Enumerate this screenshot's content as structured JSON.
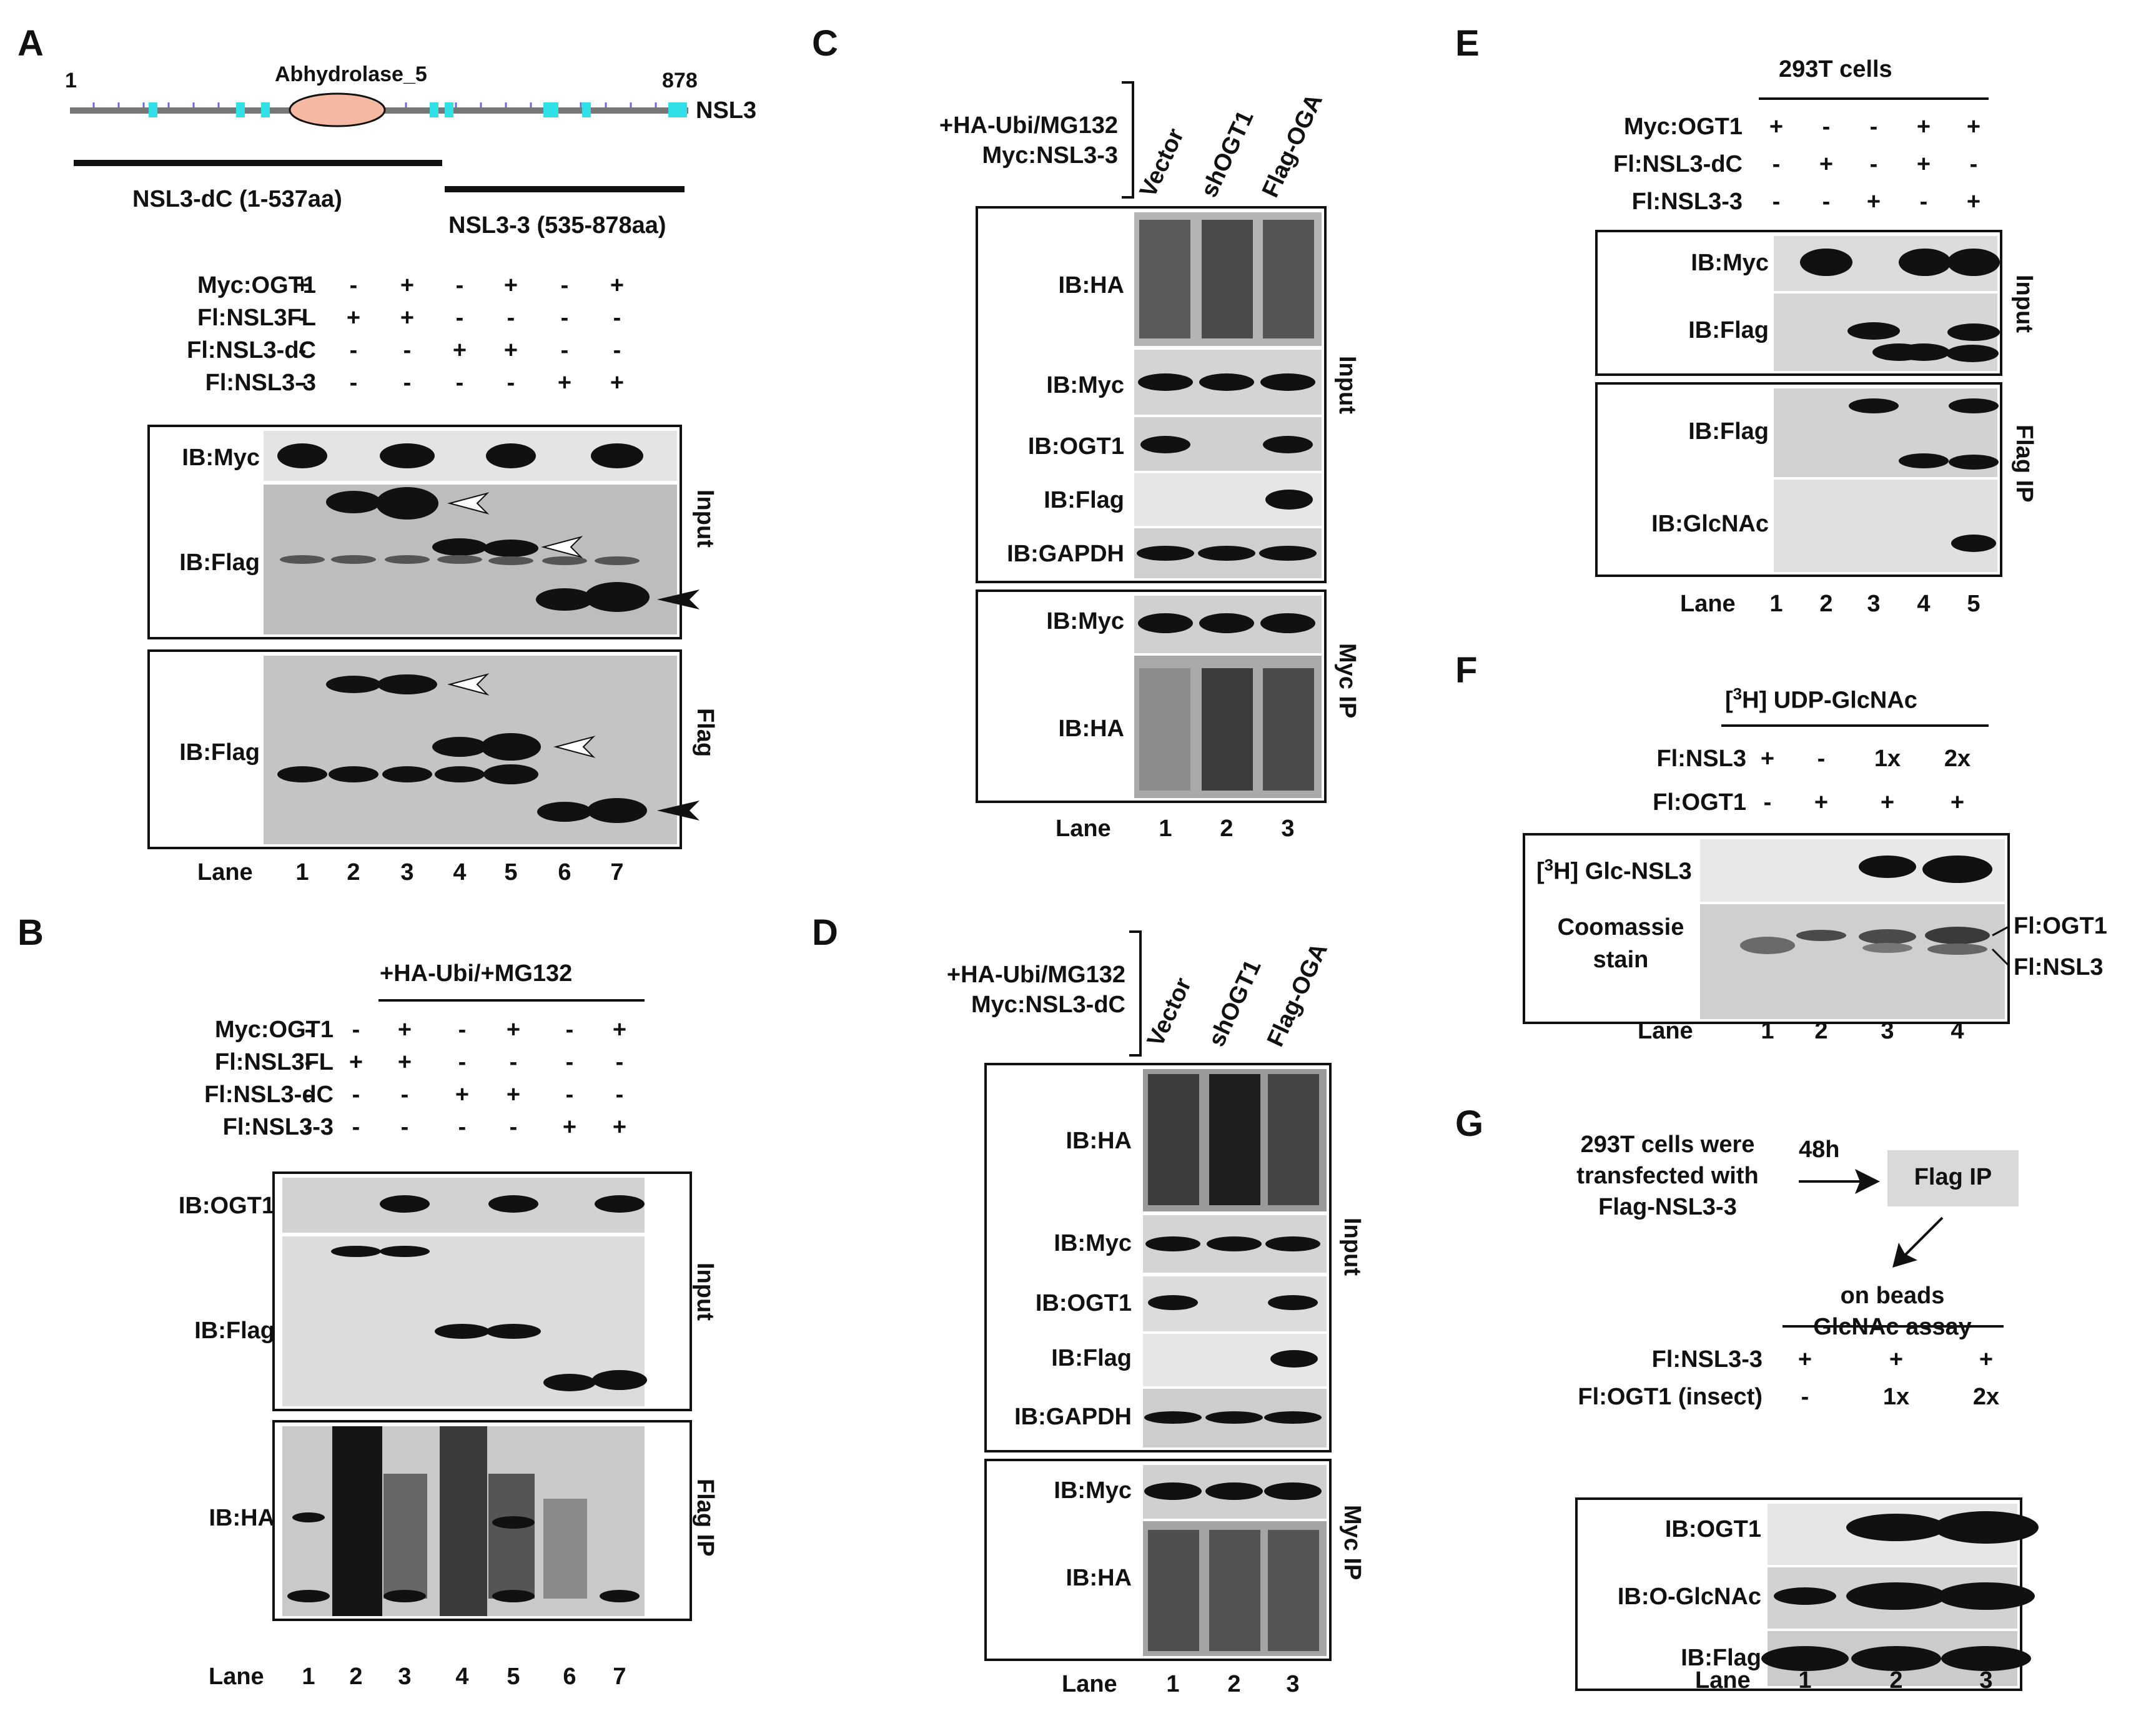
{
  "panel_labels": {
    "A": "A",
    "B": "B",
    "C": "C",
    "D": "D",
    "E": "E",
    "F": "F",
    "G": "G"
  },
  "colors": {
    "domain_fill": "#f5b8a3",
    "motif": "#2fe0e6",
    "backbone": "#777777",
    "band": "#111111",
    "membrane": "#d8d8d8",
    "frame": "#000000",
    "arrow_white": "#ffffff",
    "box_gray": "#d9d9d9"
  },
  "A": {
    "domain_start": "1",
    "domain_end": "878",
    "domain_name": "Abhydrolase_5",
    "protein": "NSL3",
    "frag1": "NSL3-dC (1-537aa)",
    "frag2": "NSL3-3 (535-878aa)",
    "rows": [
      {
        "label": "Myc:OGT1",
        "signs": [
          "+",
          "-",
          "+",
          "-",
          "+",
          "-",
          "+"
        ]
      },
      {
        "label": "Fl:NSL3FL",
        "signs": [
          "-",
          "+",
          "+",
          "-",
          "-",
          "-",
          "-"
        ]
      },
      {
        "label": "Fl:NSL3-dC",
        "signs": [
          "-",
          "-",
          "-",
          "+",
          "+",
          "-",
          "-"
        ]
      },
      {
        "label": "Fl:NSL3-3",
        "signs": [
          "-",
          "-",
          "-",
          "-",
          "-",
          "+",
          "+"
        ]
      }
    ],
    "ib_myc": "IB:Myc",
    "ib_flag_input": "IB:Flag",
    "ib_flag_ip": "IB:Flag",
    "side_input": "Input",
    "side_flag": "Flag",
    "lane_label": "Lane",
    "lanes": [
      "1",
      "2",
      "3",
      "4",
      "5",
      "6",
      "7"
    ]
  },
  "B": {
    "treatment": "+HA-Ubi/+MG132",
    "rows": [
      {
        "label": "Myc:OGT1",
        "signs": [
          "-",
          "-",
          "+",
          "-",
          "+",
          "-",
          "+"
        ]
      },
      {
        "label": "Fl:NSL3FL",
        "signs": [
          "-",
          "+",
          "+",
          "-",
          "-",
          "-",
          "-"
        ]
      },
      {
        "label": "Fl:NSL3-dC",
        "signs": [
          "-",
          "-",
          "-",
          "+",
          "+",
          "-",
          "-"
        ]
      },
      {
        "label": "Fl:NSL3-3",
        "signs": [
          "-",
          "-",
          "-",
          "-",
          "-",
          "+",
          "+"
        ]
      }
    ],
    "ib_ogt1": "IB:OGT1",
    "ib_flag": "IB:Flag",
    "ib_ha": "IB:HA",
    "side_input": "Input",
    "side_ip": "Flag IP",
    "lane_label": "Lane",
    "lanes": [
      "1",
      "2",
      "3",
      "4",
      "5",
      "6",
      "7"
    ]
  },
  "C": {
    "treatment_1": "+HA-Ubi/MG132",
    "treatment_2": "Myc:NSL3-3",
    "conditions": [
      "Vector",
      "shOGT1",
      "Flag-OGA"
    ],
    "ib": [
      "IB:HA",
      "IB:Myc",
      "IB:OGT1",
      "IB:Flag",
      "IB:GAPDH"
    ],
    "ib_ip": [
      "IB:Myc",
      "IB:HA"
    ],
    "side_input": "Input",
    "side_ip": "Myc IP",
    "lane_label": "Lane",
    "lanes": [
      "1",
      "2",
      "3"
    ]
  },
  "D": {
    "treatment_1": "+HA-Ubi/MG132",
    "treatment_2": "Myc:NSL3-dC",
    "conditions": [
      "Vector",
      "shOGT1",
      "Flag-OGA"
    ],
    "ib": [
      "IB:HA",
      "IB:Myc",
      "IB:OGT1",
      "IB:Flag",
      "IB:GAPDH"
    ],
    "ib_ip": [
      "IB:Myc",
      "IB:HA"
    ],
    "side_input": "Input",
    "side_ip": "Myc IP",
    "lane_label": "Lane",
    "lanes": [
      "1",
      "2",
      "3"
    ]
  },
  "E": {
    "cells": "293T cells",
    "rows": [
      {
        "label": "Myc:OGT1",
        "signs": [
          "+",
          "-",
          "-",
          "+",
          "+"
        ]
      },
      {
        "label": "Fl:NSL3-dC",
        "signs": [
          "-",
          "+",
          "-",
          "+",
          "-"
        ]
      },
      {
        "label": "Fl:NSL3-3",
        "signs": [
          "-",
          "-",
          "+",
          "-",
          "+"
        ]
      }
    ],
    "ib_input": [
      "IB:Myc",
      "IB:Flag"
    ],
    "ib_ip": [
      "IB:Flag",
      "IB:GlcNAc"
    ],
    "side_input": "Input",
    "side_ip": "Flag IP",
    "lane_label": "Lane",
    "lanes": [
      "1",
      "2",
      "3",
      "4",
      "5"
    ]
  },
  "F": {
    "substrate_sup": "3",
    "substrate": "H] UDP-GlcNAc",
    "rows": [
      {
        "label": "Fl:NSL3",
        "signs": [
          "+",
          "-",
          "1x",
          "2x"
        ]
      },
      {
        "label": "Fl:OGT1",
        "signs": [
          "-",
          "+",
          "+",
          "+"
        ]
      }
    ],
    "glc_sup": "3",
    "glc_label": "H] Glc-NSL3",
    "coomassie_1": "Coomassie",
    "coomassie_2": "stain",
    "band_ogt1": "Fl:OGT1",
    "band_nsl3": "Fl:NSL3",
    "lane_label": "Lane",
    "lanes": [
      "1",
      "2",
      "3",
      "4"
    ]
  },
  "G": {
    "text_1": "293T cells were",
    "text_2": "transfected with",
    "text_3": "Flag-NSL3-3",
    "time": "48h",
    "box": "Flag IP",
    "assay_1": "on beads",
    "assay_2": "GlcNAc assay",
    "rows": [
      {
        "label": "Fl:NSL3-3",
        "signs": [
          "+",
          "+",
          "+"
        ]
      },
      {
        "label": "Fl:OGT1 (insect)",
        "signs": [
          "-",
          "1x",
          "2x"
        ]
      }
    ],
    "ib": [
      "IB:OGT1",
      "IB:O-GlcNAc",
      "IB:Flag"
    ],
    "lane_label": "Lane",
    "lanes": [
      "1",
      "2",
      "3"
    ]
  }
}
